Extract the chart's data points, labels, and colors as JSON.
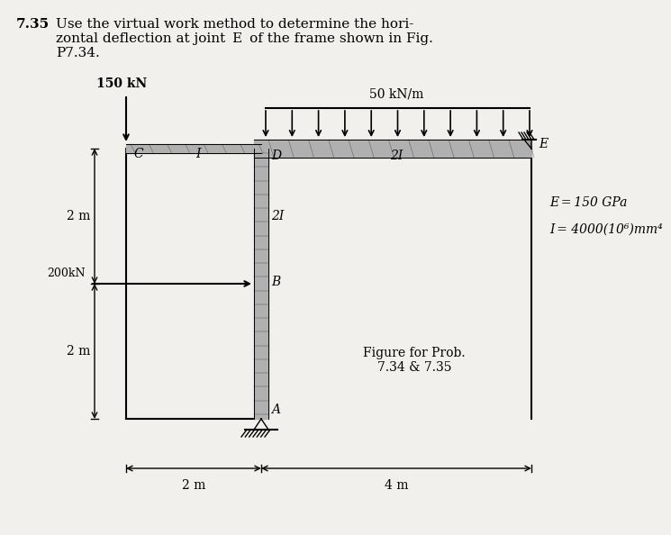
{
  "title_bold": "7.35",
  "title_rest": "Use the virtual work method to determine the hori-\nzontal deflection at joint  E  of the frame shown in Fig.\nP7.34.",
  "bg_color": "#f2f0ec",
  "load_150kN": "150 kN",
  "load_50kNm": "50 kN/m",
  "load_200kN": "200kN",
  "label_E_eq": "E = 150 GPa",
  "label_I_eq": "I = 4000(10⁶)mm⁴",
  "figure_caption": "Figure for Prob.\n7.34 & 7.35",
  "dim_2m": "2 m",
  "dim_4m": "4 m",
  "label_C": "C",
  "label_I_mem": "I",
  "label_D": "D",
  "label_2I_beam": "2I",
  "label_E_joint": "E",
  "label_B": "B",
  "label_2I_col": "2I",
  "label_A": "A",
  "col_gray": "#b0b0b0",
  "beam_gray": "#b0b0b0"
}
